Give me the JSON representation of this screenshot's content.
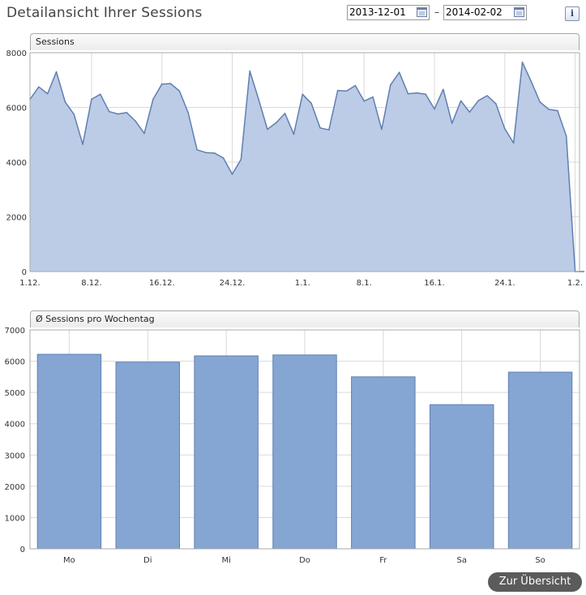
{
  "header": {
    "title": "Detailansicht Ihrer Sessions",
    "date_from": "2013-12-01",
    "date_separator": "–",
    "date_to": "2014-02-02",
    "info_label": "i"
  },
  "colors": {
    "line_fill": "#bccbe6",
    "line_stroke": "#5f7fb2",
    "bar_fill": "#85a6d3",
    "bar_stroke": "#5f7fb2",
    "grid": "#d9d9d9"
  },
  "chart_data": [
    {
      "type": "area",
      "title": "Sessions",
      "ylim": [
        0,
        8000
      ],
      "yticks": [
        0,
        2000,
        4000,
        6000,
        8000
      ],
      "x_tick_labels": [
        {
          "day": 0,
          "label": "1.12."
        },
        {
          "day": 7,
          "label": "8.12."
        },
        {
          "day": 15,
          "label": "16.12."
        },
        {
          "day": 23,
          "label": "24.12."
        },
        {
          "day": 31,
          "label": "1.1."
        },
        {
          "day": 38,
          "label": "8.1."
        },
        {
          "day": 46,
          "label": "16.1."
        },
        {
          "day": 54,
          "label": "24.1."
        },
        {
          "day": 62,
          "label": "1.2."
        }
      ],
      "x_range_days": [
        0,
        62.5
      ],
      "grid": true,
      "values": [
        6300,
        6750,
        6500,
        7300,
        6200,
        5750,
        4650,
        6300,
        6480,
        5850,
        5760,
        5810,
        5500,
        5050,
        6300,
        6850,
        6870,
        6600,
        5800,
        4450,
        4350,
        4330,
        4150,
        3560,
        4100,
        7330,
        6300,
        5200,
        5440,
        5780,
        5020,
        6480,
        6150,
        5250,
        5180,
        6620,
        6600,
        6800,
        6230,
        6380,
        5200,
        6820,
        7280,
        6500,
        6530,
        6480,
        5940,
        6660,
        5420,
        6240,
        5830,
        6250,
        6430,
        6130,
        5220,
        4700,
        7650,
        6950,
        6200,
        5930,
        5880,
        4950,
        0,
        0
      ]
    },
    {
      "type": "bar",
      "title": "Ø Sessions pro Wochentag",
      "categories": [
        "Mo",
        "Di",
        "Mi",
        "Do",
        "Fr",
        "Sa",
        "So"
      ],
      "values": [
        6220,
        5970,
        6170,
        6200,
        5500,
        4610,
        5650
      ],
      "ylim": [
        0,
        7000
      ],
      "yticks": [
        0,
        1000,
        2000,
        3000,
        4000,
        5000,
        6000,
        7000
      ],
      "grid": true
    }
  ],
  "footer": {
    "overview_button": "Zur Übersicht"
  }
}
